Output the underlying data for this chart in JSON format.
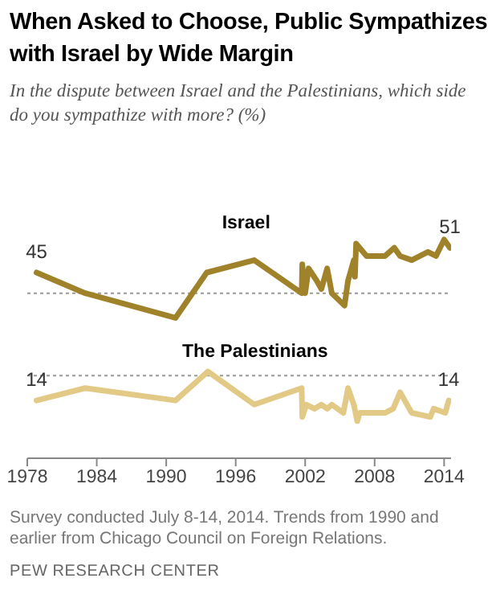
{
  "chart_data": {
    "type": "line",
    "title": "When Asked to Choose, Public Sympathizes with Israel by Wide Margin",
    "subtitle": "In the dispute between Israel and the Palestinians, which side do you sympathize with more? (%)",
    "annotations": [
      "Survey conducted July 8-14, 2014. Trends from 1990 and earlier from Chicago Council on Foreign Relations.",
      "PEW RESEARCH CENTER"
    ],
    "xlim": [
      1978,
      2014.6
    ],
    "xticks": [
      1978,
      1984,
      1990,
      1996,
      2002,
      2008,
      2014
    ],
    "ref_lines": [
      {
        "axis": "y",
        "value": 20,
        "color": "#999999",
        "line_style": "dotted"
      },
      {
        "axis": "y",
        "value": 40,
        "color": "#999999",
        "line_style": "dotted"
      }
    ],
    "tick_labels": "x",
    "legend": false,
    "line_style": "solid",
    "marker": "none",
    "series": [
      {
        "name": "Israel",
        "color": "#a0822a",
        "x": [
          1978.8,
          1983,
          1990.8,
          1993.5,
          1997.6,
          2001.7,
          2001.75,
          2002,
          2002.3,
          2003,
          2003.4,
          2003.9,
          2004.3,
          2005.4,
          2005.7,
          2006.2,
          2006.3,
          2006.4,
          2007.3,
          2008.9,
          2009.7,
          2010.2,
          2011.2,
          2012.6,
          2013.3,
          2014,
          2014.5
        ],
        "values": [
          45,
          40,
          34,
          45,
          48,
          40,
          47,
          40,
          46,
          43,
          41,
          46,
          40,
          37,
          43,
          48,
          44,
          52,
          49,
          49,
          51,
          49,
          48,
          50,
          49,
          53,
          51
        ],
        "value_labels": [
          "45",
          null,
          null,
          null,
          null,
          null,
          null,
          null,
          null,
          null,
          null,
          null,
          null,
          null,
          null,
          null,
          null,
          null,
          null,
          null,
          null,
          null,
          null,
          null,
          null,
          null,
          "51"
        ]
      },
      {
        "name": "The Palestinians",
        "color": "#e3c986",
        "x": [
          1978.8,
          1983,
          1990.8,
          1993.6,
          1997.6,
          2001.7,
          2001.75,
          2002.1,
          2002.8,
          2003.4,
          2003.9,
          2004.3,
          2005.3,
          2005.7,
          2006.2,
          2006.5,
          2006.7,
          2008.9,
          2009.6,
          2010.2,
          2011.2,
          2012.8,
          2013.1,
          2014.1,
          2014.4
        ],
        "values": [
          14,
          17,
          14,
          21,
          13,
          17,
          10,
          13,
          12,
          13,
          12,
          13,
          11,
          17,
          13,
          9,
          11,
          11,
          12,
          16,
          11,
          10,
          12,
          11,
          14
        ],
        "value_labels": [
          "14",
          null,
          null,
          null,
          null,
          null,
          null,
          null,
          null,
          null,
          null,
          null,
          null,
          null,
          null,
          null,
          null,
          null,
          null,
          null,
          null,
          null,
          null,
          null,
          "14"
        ]
      }
    ]
  }
}
